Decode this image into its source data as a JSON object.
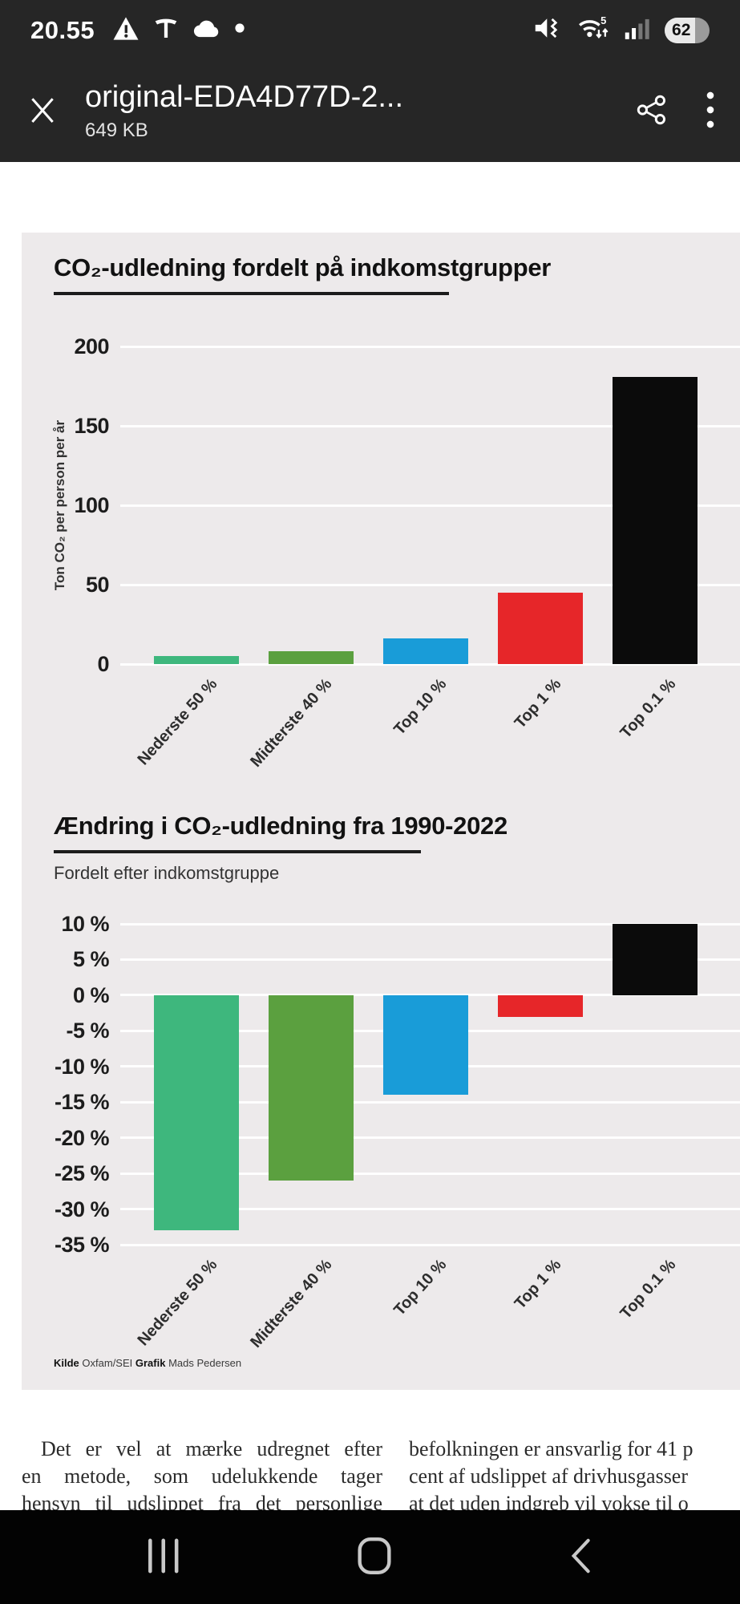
{
  "status_bar": {
    "time": "20.55",
    "wifi_label": "5",
    "battery_percent": "62",
    "icons": [
      "warning-icon",
      "tesla-icon",
      "cloud-icon",
      "notification-dot-icon",
      "mute-vibrate-icon",
      "wifi-icon",
      "signal-strength-icon",
      "battery-indicator"
    ]
  },
  "header": {
    "title": "original-EDA4D77D-2...",
    "file_size": "649 KB"
  },
  "chart_data": [
    {
      "type": "bar",
      "title": "CO₂-udledning fordelt på indkomstgrupper",
      "ylabel": "Ton CO₂ per person per år",
      "categories": [
        "Nederste 50 %",
        "Midterste 40 %",
        "Top 10 %",
        "Top 1 %",
        "Top 0.1 %"
      ],
      "values": [
        5,
        8,
        16,
        45,
        181
      ],
      "bar_colors": [
        "#3eb77d",
        "#5ba03f",
        "#199cd8",
        "#e62629",
        "#0b0b0b"
      ],
      "yticks": [
        200,
        150,
        100,
        50,
        0
      ],
      "ytick_suffix": "",
      "ylim": [
        0,
        200
      ],
      "grid": true,
      "legend": "none"
    },
    {
      "type": "bar",
      "title": "Ændring i CO₂-udledning fra 1990-2022",
      "subtitle": "Fordelt efter indkomstgruppe",
      "categories": [
        "Nederste 50 %",
        "Midterste 40 %",
        "Top 10 %",
        "Top 1 %",
        "Top 0.1 %"
      ],
      "values": [
        -33,
        -26,
        -14,
        -3,
        10
      ],
      "bar_colors": [
        "#3eb77d",
        "#5ba03f",
        "#199cd8",
        "#e62629",
        "#0b0b0b"
      ],
      "yticks": [
        10,
        5,
        0,
        -5,
        -10,
        -15,
        -20,
        -25,
        -30,
        -35
      ],
      "ytick_suffix": " %",
      "ylim": [
        -35,
        10
      ],
      "grid": true,
      "legend": "none"
    }
  ],
  "source": {
    "kilde_label": "Kilde",
    "kilde_value": " Oxfam/SEI ",
    "grafik_label": "Grafik",
    "grafik_value": " Mads Pedersen"
  },
  "article": {
    "left_lines": [
      "Det er vel at mærke udregnet efter",
      "en metode, som udelukkende tager",
      "hensyn til udslippet fra det personlige"
    ],
    "right_lines": [
      "befolkningen er ansvarlig for 41 p",
      "cent af udslippet af drivhusgasser",
      "at det uden indgreb vil vokse til o"
    ]
  },
  "nav_bar": {
    "buttons": [
      "recents",
      "home",
      "back"
    ]
  }
}
